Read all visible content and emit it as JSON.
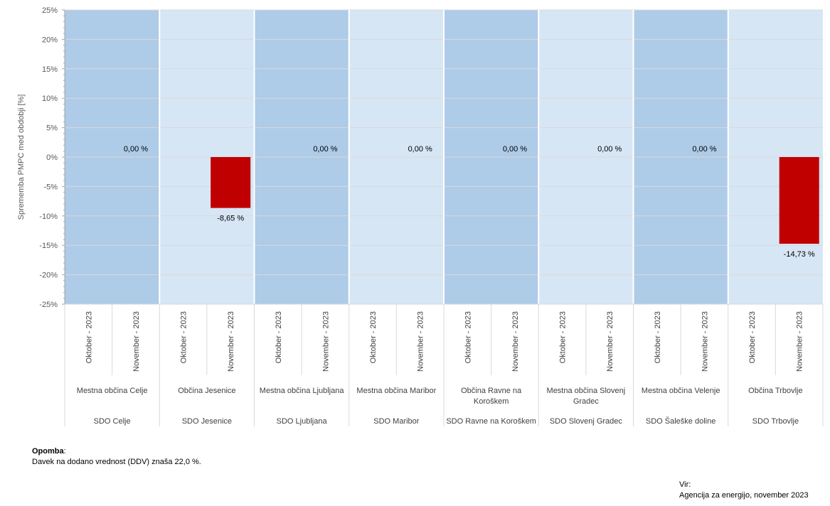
{
  "chart_data": {
    "type": "bar",
    "ylabel": "Sprememba PMPC med obdobji [%]",
    "ylim": [
      -25,
      25
    ],
    "yticks": [
      25,
      20,
      15,
      10,
      5,
      0,
      -5,
      -10,
      -15,
      -20,
      -25
    ],
    "ytick_labels": [
      "25%",
      "20%",
      "15%",
      "10%",
      "5%",
      "0%",
      "-5%",
      "-10%",
      "-15%",
      "-20%",
      "-25%"
    ],
    "periods": [
      "Oktober - 2023",
      "November - 2023"
    ],
    "groups": [
      {
        "sdo": "SDO Celje",
        "municipality": [
          "Mestna občina Celje"
        ],
        "values": [
          null,
          0.0
        ],
        "labels": [
          "",
          "0,00 %"
        ]
      },
      {
        "sdo": "SDO Jesenice",
        "municipality": [
          "Občina Jesenice"
        ],
        "values": [
          null,
          -8.65
        ],
        "labels": [
          "",
          "-8,65 %"
        ]
      },
      {
        "sdo": "SDO Ljubljana",
        "municipality": [
          "Mestna občina Ljubljana"
        ],
        "values": [
          null,
          0.0
        ],
        "labels": [
          "",
          "0,00 %"
        ]
      },
      {
        "sdo": "SDO Maribor",
        "municipality": [
          "Mestna občina Maribor"
        ],
        "values": [
          null,
          0.0
        ],
        "labels": [
          "",
          "0,00 %"
        ]
      },
      {
        "sdo": "SDO Ravne na Koroškem",
        "municipality": [
          "Občina Ravne na",
          "Koroškem"
        ],
        "values": [
          null,
          0.0
        ],
        "labels": [
          "",
          "0,00 %"
        ]
      },
      {
        "sdo": "SDO Slovenj Gradec",
        "municipality": [
          "Mestna občina Slovenj",
          "Gradec"
        ],
        "values": [
          null,
          0.0
        ],
        "labels": [
          "",
          "0,00 %"
        ]
      },
      {
        "sdo": "SDO Šaleške doline",
        "municipality": [
          "Mestna občina Velenje"
        ],
        "values": [
          null,
          0.0
        ],
        "labels": [
          "",
          "0,00 %"
        ]
      },
      {
        "sdo": "SDO Trbovlje",
        "municipality": [
          "Občina Trbovlje"
        ],
        "values": [
          null,
          -14.73
        ],
        "labels": [
          "",
          "-14,73 %"
        ]
      }
    ],
    "bar_color": "#C00000",
    "band_colors": [
      "#AECBE8",
      "#D7E6F5"
    ],
    "grid": true
  },
  "note": {
    "title": "Opomba",
    "text": "Davek na dodano vrednost (DDV) znaša 22,0 %."
  },
  "source": {
    "label": "Vir:",
    "text": "Agencija za energijo, november 2023"
  }
}
